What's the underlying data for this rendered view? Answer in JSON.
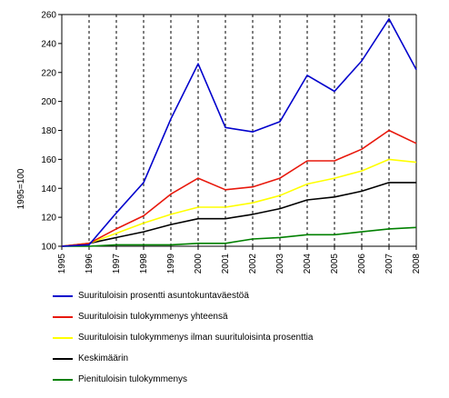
{
  "chart_data": {
    "type": "line",
    "title": "",
    "xlabel": "",
    "ylabel": "1995=100",
    "x": [
      "1995",
      "1996",
      "1997",
      "1998",
      "1999",
      "2000",
      "2001",
      "2002",
      "2003",
      "2004",
      "2005",
      "2006",
      "2007",
      "2008"
    ],
    "ylim": [
      100,
      260
    ],
    "yticks": [
      100,
      120,
      140,
      160,
      180,
      200,
      220,
      240,
      260
    ],
    "grid": "vertical dashed",
    "legend_position": "bottom",
    "series": [
      {
        "name": "Suurituloisin prosentti asuntokuntaväestöä",
        "color": "#0000cc",
        "values": [
          100,
          101,
          123,
          144,
          188,
          226,
          182,
          179,
          186,
          218,
          207,
          228,
          257,
          222
        ]
      },
      {
        "name": "Suurituloisin tulokymmenys yhteensä",
        "color": "#e8180c",
        "values": [
          100,
          102,
          112,
          121,
          136,
          147,
          139,
          141,
          147,
          159,
          159,
          167,
          180,
          171
        ]
      },
      {
        "name": "Suurituloisin tulokymmenys ilman suurituloisinta prosenttia",
        "color": "#ffff00",
        "values": [
          100,
          102,
          109,
          116,
          122,
          127,
          127,
          130,
          135,
          143,
          147,
          152,
          160,
          158
        ]
      },
      {
        "name": "Keskimäärin",
        "color": "#000000",
        "values": [
          100,
          102,
          106,
          110,
          115,
          119,
          119,
          122,
          126,
          132,
          134,
          138,
          144,
          144
        ]
      },
      {
        "name": "Pienituloisin tulokymmenys",
        "color": "#008000",
        "values": [
          100,
          100,
          101,
          101,
          101,
          102,
          102,
          105,
          106,
          108,
          108,
          110,
          112,
          113
        ]
      }
    ]
  }
}
